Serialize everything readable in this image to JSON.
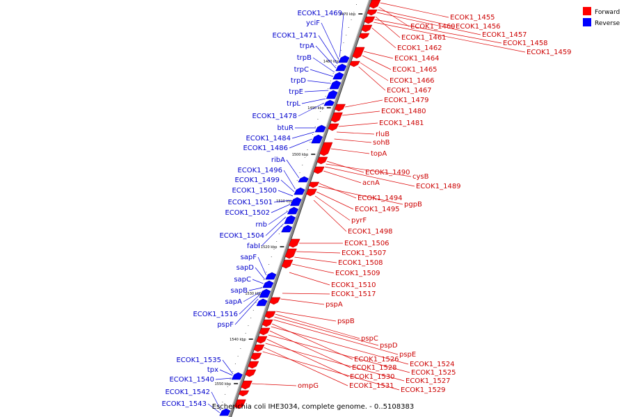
{
  "title": "Escherichia coli IHE3034, complete genome. - 0..5108383",
  "legend": [
    {
      "label": "Forward",
      "color": "#ff0000"
    },
    {
      "label": "Reverse",
      "color": "#0000ff"
    }
  ],
  "ticks": [
    "1470 kbp",
    "1480 kbp",
    "1490 kbp",
    "1500 kbp",
    "1510 kbp",
    "1520 kbp",
    "1530 kbp",
    "1540 kbp",
    "1550 kbp"
  ],
  "forward_labels": [
    "ECOK1_1455",
    "ECOK1_1460",
    "ECOK1_1456",
    "ECOK1_1457",
    "ECOK1_1461",
    "ECOK1_1458",
    "ECOK1_1462",
    "ECOK1_1459",
    "ECOK1_1464",
    "ECOK1_1465",
    "ECOK1_1466",
    "ECOK1_1467",
    "ECOK1_1479",
    "ECOK1_1480",
    "ECOK1_1481",
    "rluB",
    "sohB",
    "topA",
    "ECOK1_1490",
    "cysB",
    "acnA",
    "ECOK1_1489",
    "ECOK1_1494",
    "pgpB",
    "ECOK1_1495",
    "pyrF",
    "ECOK1_1498",
    "ECOK1_1506",
    "ECOK1_1507",
    "ECOK1_1508",
    "ECOK1_1509",
    "ECOK1_1510",
    "ECOK1_1517",
    "pspA",
    "pspB",
    "pspC",
    "pspD",
    "pspE",
    "ECOK1_1526",
    "ECOK1_1524",
    "ECOK1_1528",
    "ECOK1_1525",
    "ECOK1_1530",
    "ECOK1_1527",
    "ECOK1_1531",
    "ECOK1_1529",
    "ompG"
  ],
  "reverse_labels": [
    "ECOK1_1469",
    "yciF",
    "ECOK1_1471",
    "trpA",
    "trpB",
    "trpC",
    "trpD",
    "trpE",
    "trpL",
    "ECOK1_1478",
    "btuR",
    "ECOK1_1484",
    "ECOK1_1486",
    "ribA",
    "ECOK1_1496",
    "ECOK1_1499",
    "ECOK1_1500",
    "ECOK1_1501",
    "ECOK1_1502",
    "rnb",
    "ECOK1_1504",
    "fabI",
    "sapF",
    "sapD",
    "sapC",
    "sapB",
    "sapA",
    "ECOK1_1516",
    "pspF",
    "ECOK1_1535",
    "tpx",
    "ECOK1_1540",
    "ECOK1_1542",
    "ECOK1_1543"
  ],
  "colors": {
    "forward_fill": "#ff0000",
    "forward_text": "#cc0000",
    "reverse_fill": "#0000ff",
    "reverse_text": "#0000cc",
    "backbone": "#888888"
  }
}
